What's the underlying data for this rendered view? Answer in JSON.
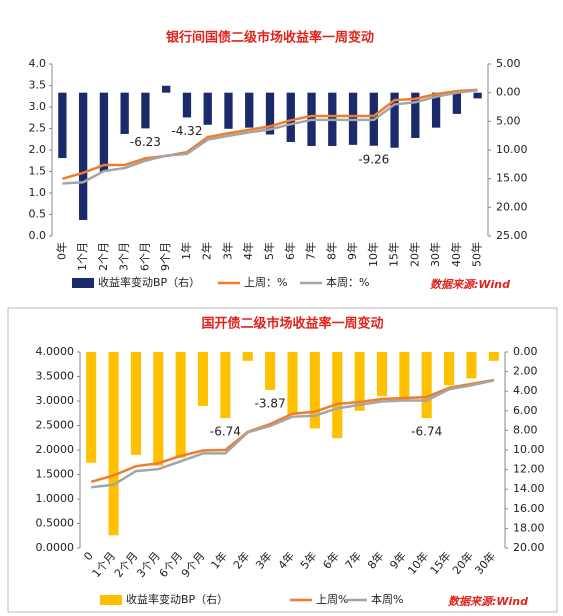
{
  "chart_data": [
    {
      "type": "bar",
      "title": "银行间国债二级市场收益率一周变动",
      "categories": [
        "0年",
        "1个月",
        "2个月",
        "3个月",
        "6个月",
        "9个月",
        "1年",
        "2年",
        "3年",
        "4年",
        "5年",
        "6年",
        "7年",
        "8年",
        "9年",
        "10年",
        "15年",
        "20年",
        "30年",
        "40年",
        "50年"
      ],
      "series": [
        {
          "name": "收益率变动BP（右）",
          "color": "#1b2a6b",
          "axis": "y2",
          "values": [
            -11.4,
            -22.2,
            -13.8,
            -7.2,
            -6.23,
            1.2,
            -4.32,
            -5.6,
            -6.3,
            -6.1,
            -7.3,
            -8.6,
            -9.3,
            -9.3,
            -9.1,
            -9.26,
            -9.6,
            -7.9,
            -6.1,
            -3.7,
            -1.0
          ],
          "value_labels": [
            null,
            null,
            null,
            null,
            "-6.23",
            null,
            "-4.32",
            null,
            null,
            null,
            null,
            null,
            null,
            null,
            null,
            "-9.26",
            null,
            null,
            null,
            null,
            null
          ]
        },
        {
          "name": "上周：%",
          "color": "#ed7d31",
          "type": "line",
          "values": [
            1.33,
            1.47,
            1.65,
            1.65,
            1.81,
            1.86,
            1.95,
            2.3,
            2.39,
            2.47,
            2.55,
            2.69,
            2.79,
            2.79,
            2.79,
            2.79,
            3.16,
            3.19,
            3.3,
            3.37,
            3.4
          ]
        },
        {
          "name": "本周：%",
          "color": "#a5a5a5",
          "type": "line",
          "values": [
            1.22,
            1.25,
            1.51,
            1.58,
            1.75,
            1.87,
            1.91,
            2.24,
            2.33,
            2.41,
            2.48,
            2.6,
            2.7,
            2.7,
            2.7,
            2.7,
            3.06,
            3.11,
            3.24,
            3.33,
            3.39
          ]
        }
      ],
      "ylim": [
        0,
        4
      ],
      "yticks": [
        {
          "value": 0,
          "label": "0.0"
        },
        0.5,
        {
          "value": 1,
          "label": "1.0"
        },
        1.5,
        {
          "value": 2,
          "label": "2.0"
        },
        2.5,
        {
          "value": 3,
          "label": "3.0"
        },
        3.5,
        {
          "value": 4,
          "label": "4.0"
        }
      ],
      "y2lim": [
        -25,
        5
      ],
      "y2ticks": [
        {
          "value": 5,
          "label": "5.00"
        },
        {
          "value": 0,
          "label": "0.00"
        },
        {
          "value": -5,
          "label": "5.00"
        },
        {
          "value": -10,
          "label": "10.00"
        },
        {
          "value": -15,
          "label": "15.00"
        },
        {
          "value": -20,
          "label": "20.00"
        },
        {
          "value": -25,
          "label": "25.00"
        }
      ],
      "source": "数据来源:Wind"
    },
    {
      "type": "bar",
      "title": "国开债二级市场收益率一周变动",
      "categories": [
        "0",
        "1个月",
        "2个月",
        "3个月",
        "6个月",
        "9个月",
        "1年",
        "2年",
        "3年",
        "4年",
        "5年",
        "6年",
        "7年",
        "8年",
        "9年",
        "10年",
        "15年",
        "20年",
        "30年"
      ],
      "series": [
        {
          "name": "收益率变动BP（右）",
          "color": "#ffc000",
          "axis": "y2",
          "values": [
            -11.3,
            -18.7,
            -10.5,
            -11.6,
            -10.8,
            -5.5,
            -6.74,
            -0.9,
            -3.87,
            -6.4,
            -7.8,
            -8.8,
            -6.0,
            -4.5,
            -4.9,
            -6.74,
            -3.4,
            -2.7,
            -0.9
          ],
          "value_labels": [
            null,
            null,
            null,
            null,
            null,
            null,
            "-6.74",
            null,
            "-3.87",
            null,
            null,
            null,
            null,
            null,
            null,
            "-6.74",
            null,
            null,
            null
          ]
        },
        {
          "name": "上周%",
          "color": "#ed7d31",
          "type": "line",
          "values": [
            1.35,
            1.48,
            1.67,
            1.73,
            1.88,
            1.99,
            2.0,
            2.37,
            2.53,
            2.74,
            2.78,
            2.94,
            2.98,
            3.04,
            3.06,
            3.08,
            3.27,
            3.35,
            3.43
          ]
        },
        {
          "name": "本周%",
          "color": "#a5a5a5",
          "type": "line",
          "values": [
            1.24,
            1.29,
            1.57,
            1.61,
            1.77,
            1.93,
            1.93,
            2.36,
            2.49,
            2.68,
            2.7,
            2.85,
            2.92,
            2.99,
            3.01,
            3.01,
            3.24,
            3.32,
            3.42
          ]
        }
      ],
      "ylim": [
        0,
        4
      ],
      "yticks": [
        {
          "value": 0,
          "label": "0.0000"
        },
        {
          "value": 0.5,
          "label": "0.5000"
        },
        {
          "value": 1,
          "label": "1.0000"
        },
        {
          "value": 1.5,
          "label": "1.5000"
        },
        {
          "value": 2,
          "label": "2.0000"
        },
        {
          "value": 2.5,
          "label": "2.5000"
        },
        {
          "value": 3,
          "label": "3.0000"
        },
        {
          "value": 3.5,
          "label": "3.5000"
        },
        {
          "value": 4,
          "label": "4.0000"
        }
      ],
      "y2lim": [
        -20,
        0
      ],
      "y2ticks": [
        {
          "value": 0,
          "label": "0.00"
        },
        {
          "value": -2,
          "label": "2.00"
        },
        {
          "value": -4,
          "label": "4.00"
        },
        {
          "value": -6,
          "label": "6.00"
        },
        {
          "value": -8,
          "label": "8.00"
        },
        {
          "value": -10,
          "label": "10.00"
        },
        {
          "value": -12,
          "label": "12.00"
        },
        {
          "value": -14,
          "label": "14.00"
        },
        {
          "value": -16,
          "label": "16.00"
        },
        {
          "value": -18,
          "label": "18.00"
        },
        {
          "value": -20,
          "label": "20.00"
        }
      ],
      "source": "数据来源:Wind"
    }
  ]
}
